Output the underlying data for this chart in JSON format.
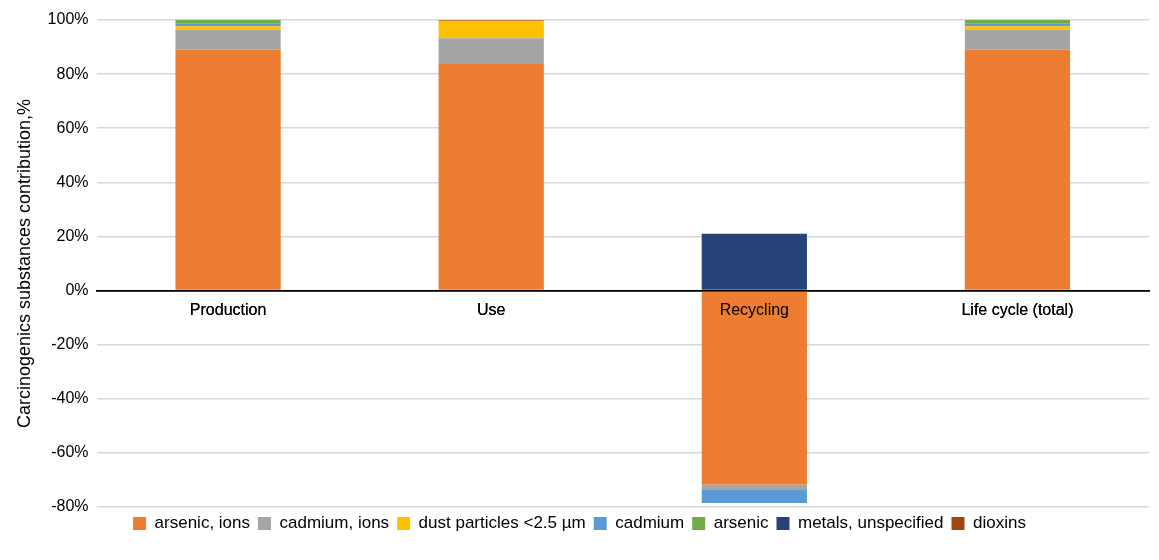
{
  "chart_data": {
    "type": "bar",
    "stacked": true,
    "ylabel": "Carcinogenics substances contribution,%",
    "categories": [
      "Production",
      "Use",
      "Recycling",
      "Life cycle (total)"
    ],
    "series": [
      {
        "name": "arsenic, ions",
        "color": "#ed7d31",
        "values": [
          89,
          83.7,
          -71.7,
          89
        ]
      },
      {
        "name": "cadmium, ions",
        "color": "#a5a5a5",
        "values": [
          7.4,
          9.6,
          -2,
          7.4
        ]
      },
      {
        "name": "dust particles <2.5 µm",
        "color": "#ffc000",
        "values": [
          1.3,
          6.4,
          null,
          1.3
        ]
      },
      {
        "name": "cadmium",
        "color": "#5b9bd5",
        "values": [
          1.1,
          null,
          -4.8,
          1.1
        ]
      },
      {
        "name": "arsenic",
        "color": "#70ad47",
        "values": [
          1.2,
          null,
          null,
          1.2
        ]
      },
      {
        "name": "metals, unspecified",
        "color": "#264478",
        "values": [
          null,
          null,
          21,
          null
        ]
      },
      {
        "name": "dioxins",
        "color": "#9e480e",
        "values": [
          null,
          0.3,
          null,
          null
        ]
      }
    ],
    "ylim": [
      -80,
      100
    ],
    "yticks": [
      {
        "value": -80,
        "label": "-80%"
      },
      {
        "value": -60,
        "label": "-60%"
      },
      {
        "value": -40,
        "label": "-40%"
      },
      {
        "value": -20,
        "label": "-20%"
      },
      {
        "value": 0,
        "label": "0%"
      },
      {
        "value": 20,
        "label": "20%"
      },
      {
        "value": 40,
        "label": "40%"
      },
      {
        "value": 60,
        "label": "60%"
      },
      {
        "value": 80,
        "label": "80%"
      },
      {
        "value": 100,
        "label": "100%"
      }
    ],
    "grid": "y",
    "legend": "bottom"
  }
}
